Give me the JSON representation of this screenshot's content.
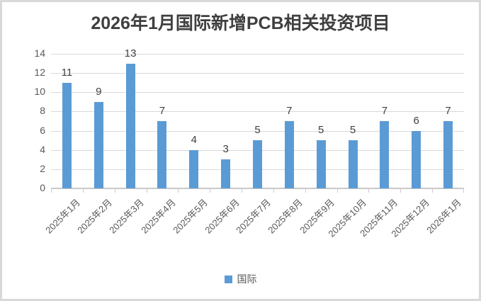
{
  "chart_data": {
    "type": "bar",
    "title": "2026年1月国际新增PCB相关投资项目",
    "categories": [
      "2025年1月",
      "2025年2月",
      "2025年3月",
      "2025年4月",
      "2025年5月",
      "2025年6月",
      "2025年7月",
      "2025年8月",
      "2025年9月",
      "2025年10月",
      "2025年11月",
      "2025年12月",
      "2026年1月"
    ],
    "series": [
      {
        "name": "国际",
        "values": [
          11,
          9,
          13,
          7,
          4,
          3,
          5,
          7,
          5,
          5,
          7,
          6,
          7
        ]
      }
    ],
    "ylim": [
      0,
      14
    ],
    "yticks": [
      0,
      2,
      4,
      6,
      8,
      10,
      12,
      14
    ],
    "grid": true,
    "data_labels": true,
    "legend_position": "bottom"
  },
  "colors": {
    "bar": "#5B9BD5",
    "gridline": "#D9D9D9",
    "axis_line": "#C9C9C9",
    "title_text": "#3F3F3F",
    "value_label_text": "#404040",
    "axis_tick_text": "#595959",
    "frame_border": "#D9D9D9",
    "background": "#FFFFFF"
  }
}
